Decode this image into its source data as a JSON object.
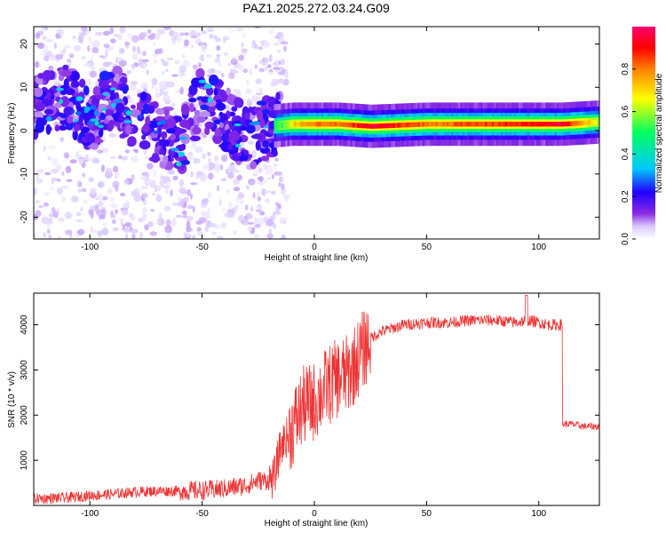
{
  "title": "PAZ1.2025.272.03.24.G09",
  "chart_data": [
    {
      "type": "heatmap",
      "name": "spectrogram",
      "xlabel": "Height of straight line (km)",
      "ylabel": "Frequency (Hz)",
      "xlim": [
        -125,
        127
      ],
      "ylim": [
        -25,
        24
      ],
      "xticks": [
        -100,
        -50,
        0,
        50,
        100
      ],
      "yticks": [
        -20,
        -10,
        0,
        10,
        20
      ],
      "colorbar": {
        "label": "Normalized spectral amplitude",
        "range": [
          0,
          1
        ],
        "ticks": [
          0.0,
          0.2,
          0.4,
          0.6,
          0.8
        ],
        "colors": [
          "#ffffff",
          "#d9c8ff",
          "#8a2be2",
          "#2200ff",
          "#00c8ff",
          "#00ff60",
          "#ffff00",
          "#ff8000",
          "#ff0000",
          "#ff0070"
        ]
      },
      "ridge": {
        "description": "main spectral line",
        "points": [
          {
            "x": -118,
            "f": 6,
            "amp": 0.2
          },
          {
            "x": -110,
            "f": 8,
            "amp": 0.25
          },
          {
            "x": -100,
            "f": 2,
            "amp": 0.25
          },
          {
            "x": -90,
            "f": 8,
            "amp": 0.3
          },
          {
            "x": -80,
            "f": 3,
            "amp": 0.25
          },
          {
            "x": -70,
            "f": 0,
            "amp": 0.3
          },
          {
            "x": -60,
            "f": -4,
            "amp": 0.3
          },
          {
            "x": -50,
            "f": 8,
            "amp": 0.2
          },
          {
            "x": -40,
            "f": 3,
            "amp": 0.25
          },
          {
            "x": -30,
            "f": -2,
            "amp": 0.2
          },
          {
            "x": -20,
            "f": 1,
            "amp": 0.3
          },
          {
            "x": -10,
            "f": 1.5,
            "amp": 0.7
          },
          {
            "x": 0,
            "f": 1.5,
            "amp": 0.8
          },
          {
            "x": 10,
            "f": 1.5,
            "amp": 0.8
          },
          {
            "x": 25,
            "f": 1,
            "amp": 0.95
          },
          {
            "x": 50,
            "f": 1.5,
            "amp": 0.8
          },
          {
            "x": 75,
            "f": 1.5,
            "amp": 0.85
          },
          {
            "x": 100,
            "f": 1.5,
            "amp": 0.9
          },
          {
            "x": 110,
            "f": 1.5,
            "amp": 0.95
          },
          {
            "x": 127,
            "f": 2,
            "amp": 0.6
          }
        ]
      }
    },
    {
      "type": "line",
      "name": "snr",
      "xlabel": "Height of straight line (km)",
      "ylabel": "SNR (10 * v/v)",
      "xlim": [
        -125,
        127
      ],
      "ylim": [
        0,
        4700
      ],
      "xticks": [
        -100,
        -50,
        0,
        50,
        100
      ],
      "yticks": [
        1000,
        2000,
        3000,
        4000
      ],
      "color": "#ee3333",
      "series": [
        {
          "name": "SNR",
          "x": [
            -125,
            -110,
            -100,
            -90,
            -80,
            -70,
            -60,
            -50,
            -40,
            -30,
            -25,
            -20,
            -18,
            -15,
            -10,
            -5,
            0,
            5,
            10,
            15,
            20,
            25,
            30,
            40,
            50,
            60,
            70,
            80,
            90,
            95,
            100,
            105,
            110,
            111,
            115,
            120,
            127
          ],
          "y": [
            150,
            170,
            220,
            250,
            300,
            320,
            320,
            330,
            370,
            450,
            550,
            550,
            600,
            1300,
            1700,
            2200,
            2300,
            2600,
            2800,
            2900,
            3300,
            3700,
            3850,
            4000,
            4050,
            4050,
            4100,
            4100,
            4050,
            4100,
            4050,
            4000,
            4000,
            1800,
            1800,
            1750,
            1750
          ]
        }
      ]
    }
  ]
}
